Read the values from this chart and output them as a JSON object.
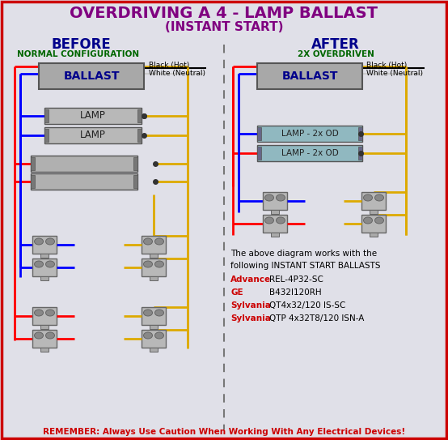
{
  "title_line1": "OVERDRIVING A 4 - LAMP BALLAST",
  "title_line2": "(INSTANT START)",
  "title_color": "#800080",
  "title_fontsize": 14,
  "subtitle_fontsize": 11,
  "bg_color": "#e0e0e8",
  "border_color": "#cc0000",
  "before_label": "BEFORE",
  "before_sublabel": "NORMAL CONFIGURATION",
  "after_label": "AFTER",
  "after_sublabel": "2X OVERDRIVEN",
  "section_label_color": "#00008B",
  "section_sublabel_color": "#006600",
  "ballast_color": "#a8a8a8",
  "ballast_text_color": "#00008B",
  "lamp_color": "#b8b8b8",
  "lamp_od_color": "#90b8c0",
  "lamp_text_color": "#222222",
  "wire_red": "#ff0000",
  "wire_blue": "#0000ff",
  "wire_yellow": "#ddaa00",
  "wire_black": "#000000",
  "wire_white": "#cccccc",
  "remember_text": "REMEMBER: Always Use Caution When Working With Any Electrical Devices!",
  "remember_color": "#cc0000",
  "remember_fontsize": 7.5,
  "ballast_info_text": "The above diagram works with the\nfollowing INSTANT START BALLASTS",
  "brand1_label": "Advance",
  "brand1_value": "REL-4P32-SC",
  "brand2_label": "GE",
  "brand2_value": "B432I120RH",
  "brand3_label": "Sylvania",
  "brand3_value": "QT4x32/120 IS-SC",
  "brand4_label": "Sylvania",
  "brand4_value": "QTP 4x32T8/120 ISN-A",
  "brand_label_color": "#cc0000",
  "brand_value_color": "#000000",
  "dashed_line_color": "#777777"
}
